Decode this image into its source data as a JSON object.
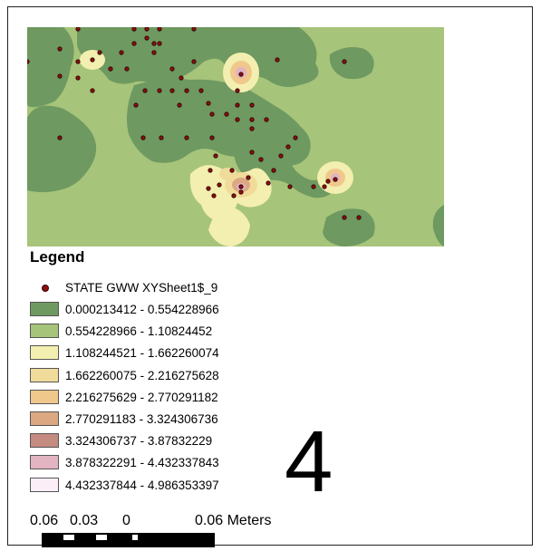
{
  "legend": {
    "title": "Legend",
    "point_layer": "STATE GWW XYSheet1$_9",
    "classes": [
      {
        "label": "0.000213412 - 0.554228966",
        "color": "#6e9960"
      },
      {
        "label": "0.554228966 - 1.10824452",
        "color": "#a6c47a"
      },
      {
        "label": "1.108244521 - 1.662260074",
        "color": "#f3efb0"
      },
      {
        "label": "1.662260075 - 2.216275628",
        "color": "#f1db9a"
      },
      {
        "label": "2.216275629 - 2.770291182",
        "color": "#f0c88c"
      },
      {
        "label": "2.770291183 - 3.324306736",
        "color": "#dba882"
      },
      {
        "label": "3.324306737 - 3.87832229",
        "color": "#c48b80"
      },
      {
        "label": "3.878322291 - 4.432337843",
        "color": "#e2b4c2"
      },
      {
        "label": "4.432337844 - 4.986353397",
        "color": "#fbeef6"
      }
    ]
  },
  "page_number": "4",
  "scale_bar": {
    "labels": [
      "0.06",
      "0.03",
      "0",
      "0.06 Meters"
    ]
  },
  "colors": {
    "point": "#8b1010"
  }
}
